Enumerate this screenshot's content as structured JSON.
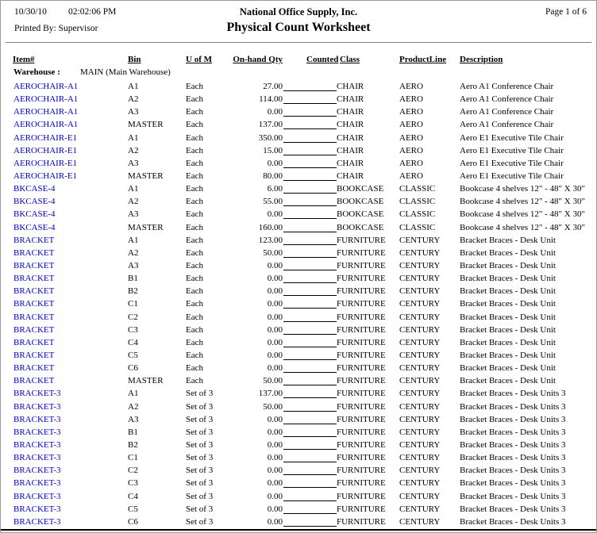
{
  "colors": {
    "link_blue": "#0000cc",
    "separator_gray": "#808080",
    "bottom_rule_black": "#000000"
  },
  "header": {
    "date": "10/30/10",
    "time": "02:02:06 PM",
    "company": "National Office Supply, Inc.",
    "page_label": "Page 1 of 6",
    "printed_by": "Printed By: Supervisor",
    "title": "Physical Count Worksheet"
  },
  "table": {
    "column_headers": {
      "item": "Item#",
      "bin": "Bin",
      "uom": "U of M",
      "qty": "On-hand Qty",
      "counted": "Counted",
      "class": "Class",
      "product_line": "ProductLine",
      "description": "Description"
    },
    "warehouse_label": "Warehouse :",
    "warehouse_value": "MAIN (Main Warehouse)",
    "rows": [
      {
        "item": "AEROCHAIR-A1",
        "bin": "A1",
        "uom": "Each",
        "qty": "27.00",
        "class": "CHAIR",
        "product_line": "AERO",
        "description": "Aero A1 Conference Chair"
      },
      {
        "item": "AEROCHAIR-A1",
        "bin": "A2",
        "uom": "Each",
        "qty": "114.00",
        "class": "CHAIR",
        "product_line": "AERO",
        "description": "Aero A1 Conference Chair"
      },
      {
        "item": "AEROCHAIR-A1",
        "bin": "A3",
        "uom": "Each",
        "qty": "0.00",
        "class": "CHAIR",
        "product_line": "AERO",
        "description": "Aero A1 Conference Chair"
      },
      {
        "item": "AEROCHAIR-A1",
        "bin": "MASTER",
        "uom": "Each",
        "qty": "137.00",
        "class": "CHAIR",
        "product_line": "AERO",
        "description": "Aero A1 Conference Chair"
      },
      {
        "item": "AEROCHAIR-E1",
        "bin": "A1",
        "uom": "Each",
        "qty": "350.00",
        "class": "CHAIR",
        "product_line": "AERO",
        "description": "Aero E1 Executive Tile Chair"
      },
      {
        "item": "AEROCHAIR-E1",
        "bin": "A2",
        "uom": "Each",
        "qty": "15.00",
        "class": "CHAIR",
        "product_line": "AERO",
        "description": "Aero E1 Executive Tile Chair"
      },
      {
        "item": "AEROCHAIR-E1",
        "bin": "A3",
        "uom": "Each",
        "qty": "0.00",
        "class": "CHAIR",
        "product_line": "AERO",
        "description": "Aero E1 Executive Tile Chair"
      },
      {
        "item": "AEROCHAIR-E1",
        "bin": "MASTER",
        "uom": "Each",
        "qty": "80.00",
        "class": "CHAIR",
        "product_line": "AERO",
        "description": "Aero E1 Executive Tile Chair"
      },
      {
        "item": "BKCASE-4",
        "bin": "A1",
        "uom": "Each",
        "qty": "6.00",
        "class": "BOOKCASE",
        "product_line": "CLASSIC",
        "description": "Bookcase 4 shelves 12\" - 48\" X 30\""
      },
      {
        "item": "BKCASE-4",
        "bin": "A2",
        "uom": "Each",
        "qty": "55.00",
        "class": "BOOKCASE",
        "product_line": "CLASSIC",
        "description": "Bookcase 4 shelves 12\" - 48\" X 30\""
      },
      {
        "item": "BKCASE-4",
        "bin": "A3",
        "uom": "Each",
        "qty": "0.00",
        "class": "BOOKCASE",
        "product_line": "CLASSIC",
        "description": "Bookcase 4 shelves 12\" - 48\" X 30\""
      },
      {
        "item": "BKCASE-4",
        "bin": "MASTER",
        "uom": "Each",
        "qty": "160.00",
        "class": "BOOKCASE",
        "product_line": "CLASSIC",
        "description": "Bookcase 4 shelves 12\" - 48\" X 30\""
      },
      {
        "item": "BRACKET",
        "bin": "A1",
        "uom": "Each",
        "qty": "123.00",
        "class": "FURNITURE",
        "product_line": "CENTURY",
        "description": "Bracket Braces - Desk Unit"
      },
      {
        "item": "BRACKET",
        "bin": "A2",
        "uom": "Each",
        "qty": "50.00",
        "class": "FURNITURE",
        "product_line": "CENTURY",
        "description": "Bracket Braces - Desk Unit"
      },
      {
        "item": "BRACKET",
        "bin": "A3",
        "uom": "Each",
        "qty": "0.00",
        "class": "FURNITURE",
        "product_line": "CENTURY",
        "description": "Bracket Braces - Desk Unit"
      },
      {
        "item": "BRACKET",
        "bin": "B1",
        "uom": "Each",
        "qty": "0.00",
        "class": "FURNITURE",
        "product_line": "CENTURY",
        "description": "Bracket Braces - Desk Unit"
      },
      {
        "item": "BRACKET",
        "bin": "B2",
        "uom": "Each",
        "qty": "0.00",
        "class": "FURNITURE",
        "product_line": "CENTURY",
        "description": "Bracket Braces - Desk Unit"
      },
      {
        "item": "BRACKET",
        "bin": "C1",
        "uom": "Each",
        "qty": "0.00",
        "class": "FURNITURE",
        "product_line": "CENTURY",
        "description": "Bracket Braces - Desk Unit"
      },
      {
        "item": "BRACKET",
        "bin": "C2",
        "uom": "Each",
        "qty": "0.00",
        "class": "FURNITURE",
        "product_line": "CENTURY",
        "description": "Bracket Braces - Desk Unit"
      },
      {
        "item": "BRACKET",
        "bin": "C3",
        "uom": "Each",
        "qty": "0.00",
        "class": "FURNITURE",
        "product_line": "CENTURY",
        "description": "Bracket Braces - Desk Unit"
      },
      {
        "item": "BRACKET",
        "bin": "C4",
        "uom": "Each",
        "qty": "0.00",
        "class": "FURNITURE",
        "product_line": "CENTURY",
        "description": "Bracket Braces - Desk Unit"
      },
      {
        "item": "BRACKET",
        "bin": "C5",
        "uom": "Each",
        "qty": "0.00",
        "class": "FURNITURE",
        "product_line": "CENTURY",
        "description": "Bracket Braces - Desk Unit"
      },
      {
        "item": "BRACKET",
        "bin": "C6",
        "uom": "Each",
        "qty": "0.00",
        "class": "FURNITURE",
        "product_line": "CENTURY",
        "description": "Bracket Braces - Desk Unit"
      },
      {
        "item": "BRACKET",
        "bin": "MASTER",
        "uom": "Each",
        "qty": "50.00",
        "class": "FURNITURE",
        "product_line": "CENTURY",
        "description": "Bracket Braces - Desk Unit"
      },
      {
        "item": "BRACKET-3",
        "bin": "A1",
        "uom": "Set of 3",
        "qty": "137.00",
        "class": "FURNITURE",
        "product_line": "CENTURY",
        "description": "Bracket Braces - Desk Units 3"
      },
      {
        "item": "BRACKET-3",
        "bin": "A2",
        "uom": "Set of 3",
        "qty": "50.00",
        "class": "FURNITURE",
        "product_line": "CENTURY",
        "description": "Bracket Braces - Desk Units 3"
      },
      {
        "item": "BRACKET-3",
        "bin": "A3",
        "uom": "Set of 3",
        "qty": "0.00",
        "class": "FURNITURE",
        "product_line": "CENTURY",
        "description": "Bracket Braces - Desk Units 3"
      },
      {
        "item": "BRACKET-3",
        "bin": "B1",
        "uom": "Set of 3",
        "qty": "0.00",
        "class": "FURNITURE",
        "product_line": "CENTURY",
        "description": "Bracket Braces - Desk Units 3"
      },
      {
        "item": "BRACKET-3",
        "bin": "B2",
        "uom": "Set of 3",
        "qty": "0.00",
        "class": "FURNITURE",
        "product_line": "CENTURY",
        "description": "Bracket Braces - Desk Units 3"
      },
      {
        "item": "BRACKET-3",
        "bin": "C1",
        "uom": "Set of 3",
        "qty": "0.00",
        "class": "FURNITURE",
        "product_line": "CENTURY",
        "description": "Bracket Braces - Desk Units 3"
      },
      {
        "item": "BRACKET-3",
        "bin": "C2",
        "uom": "Set of 3",
        "qty": "0.00",
        "class": "FURNITURE",
        "product_line": "CENTURY",
        "description": "Bracket Braces - Desk Units 3"
      },
      {
        "item": "BRACKET-3",
        "bin": "C3",
        "uom": "Set of 3",
        "qty": "0.00",
        "class": "FURNITURE",
        "product_line": "CENTURY",
        "description": "Bracket Braces - Desk Units 3"
      },
      {
        "item": "BRACKET-3",
        "bin": "C4",
        "uom": "Set of 3",
        "qty": "0.00",
        "class": "FURNITURE",
        "product_line": "CENTURY",
        "description": "Bracket Braces - Desk Units 3"
      },
      {
        "item": "BRACKET-3",
        "bin": "C5",
        "uom": "Set of 3",
        "qty": "0.00",
        "class": "FURNITURE",
        "product_line": "CENTURY",
        "description": "Bracket Braces - Desk Units 3"
      },
      {
        "item": "BRACKET-3",
        "bin": "C6",
        "uom": "Set of 3",
        "qty": "0.00",
        "class": "FURNITURE",
        "product_line": "CENTURY",
        "description": "Bracket Braces - Desk Units 3"
      }
    ]
  }
}
